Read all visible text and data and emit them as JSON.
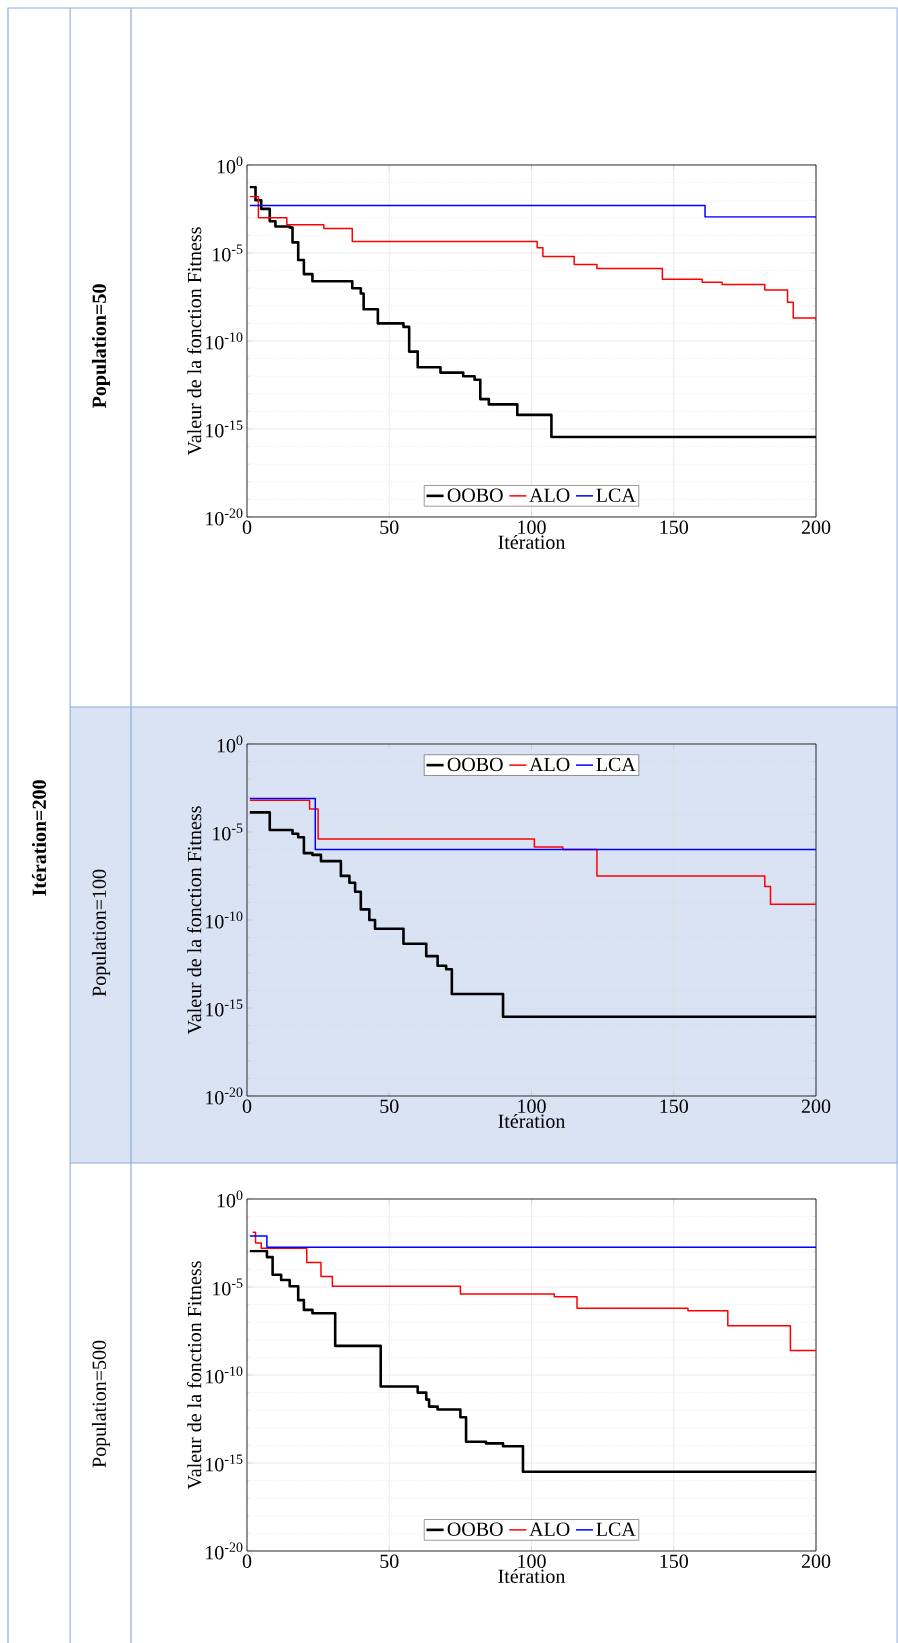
{
  "chart_data": [
    {
      "type": "step",
      "title": "Population=50",
      "xlabel": "Itération",
      "ylabel": "Valeur de la fonction Fitness",
      "annotations": [
        "Itération=200"
      ],
      "xlim": [
        0,
        200
      ],
      "ylim": [
        1e-20,
        1
      ],
      "xticks": [
        0,
        50,
        100,
        150,
        200
      ],
      "yticks": [
        {
          "value": 1e-20,
          "label": "10$^{-20}$"
        },
        {
          "value": 1e-15,
          "label": "10$^{-15}$"
        },
        {
          "value": 1e-10,
          "label": "10$^{-10}$"
        },
        {
          "value": 1e-05,
          "label": "10$^{-5}$"
        },
        {
          "value": 1,
          "label": "10$^{0}$"
        }
      ],
      "log": "y",
      "grid": true,
      "legend": "bottom",
      "series": [
        {
          "name": "OOBO",
          "color": "#000000",
          "x": [
            1,
            3,
            5,
            8,
            10,
            15,
            16,
            18,
            20,
            23,
            37,
            40,
            41,
            46,
            55,
            57,
            60,
            68,
            76,
            80,
            82,
            85,
            95,
            107,
            200
          ],
          "values": [
            0.056,
            0.01,
            0.0032,
            0.00063,
            0.00032,
            0.00028,
            4e-05,
            4e-06,
            6.3e-07,
            2.5e-07,
            1e-07,
            5e-08,
            6.3e-09,
            1e-09,
            6.3e-10,
            2.5e-11,
            3.2e-12,
            1.6e-12,
            1e-12,
            6.3e-13,
            5e-14,
            2.5e-14,
            6.3e-15,
            3.5e-16,
            3.5e-16
          ]
        },
        {
          "name": "ALO",
          "color": "#ff0000",
          "x": [
            1,
            4,
            14,
            27,
            37,
            102,
            104,
            115,
            123,
            146,
            160,
            167,
            182,
            190,
            192,
            200
          ],
          "values": [
            0.016,
            0.001,
            0.0004,
            0.00025,
            4.5e-05,
            2e-05,
            6.3e-06,
            2.2e-06,
            1.3e-06,
            3.2e-07,
            2.2e-07,
            1.6e-07,
            7.9e-08,
            1.6e-08,
            2e-09,
            1.4e-09
          ]
        },
        {
          "name": "LCA",
          "color": "#0000ff",
          "x": [
            1,
            161,
            200
          ],
          "values": [
            0.005,
            0.0011,
            0.0011
          ]
        }
      ]
    },
    {
      "type": "step",
      "title": "Population=100",
      "xlabel": "Itération",
      "ylabel": "Valeur de la fonction Fitness",
      "xlim": [
        0,
        200
      ],
      "ylim": [
        1e-20,
        1
      ],
      "xticks": [
        0,
        50,
        100,
        150,
        200
      ],
      "yticks": [
        {
          "value": 1e-20,
          "label": "10$^{-20}$"
        },
        {
          "value": 1e-15,
          "label": "10$^{-15}$"
        },
        {
          "value": 1e-10,
          "label": "10$^{-10}$"
        },
        {
          "value": 1e-05,
          "label": "10$^{-5}$"
        },
        {
          "value": 1,
          "label": "10$^{0}$"
        }
      ],
      "log": "y",
      "grid": true,
      "legend": "top",
      "series": [
        {
          "name": "OOBO",
          "color": "#000000",
          "x": [
            1,
            8,
            16,
            18,
            20,
            23,
            26,
            33,
            36,
            38,
            40,
            43,
            45,
            55,
            63,
            67,
            70,
            72,
            90,
            200
          ],
          "values": [
            0.00013,
            1.3e-05,
            7.9e-06,
            5e-06,
            6.3e-07,
            5e-07,
            2.2e-07,
            3.2e-08,
            1.3e-08,
            4e-09,
            4e-10,
            1e-10,
            3.2e-11,
            4.5e-12,
            8.9e-13,
            2.5e-13,
            1.6e-13,
            6.3e-15,
            3.2e-16,
            3.2e-16
          ]
        },
        {
          "name": "ALO",
          "color": "#ff0000",
          "x": [
            1,
            22,
            25,
            101,
            111,
            123,
            182,
            184,
            200
          ],
          "values": [
            0.00063,
            0.0002,
            4e-06,
            1.4e-06,
            1e-06,
            3.2e-08,
            7.9e-09,
            7.9e-10,
            7.9e-10
          ]
        },
        {
          "name": "LCA",
          "color": "#0000ff",
          "x": [
            1,
            24,
            200
          ],
          "values": [
            0.00079,
            1e-06,
            1e-06
          ]
        }
      ]
    },
    {
      "type": "step",
      "title": "Population=500",
      "xlabel": "Itération",
      "ylabel": "Valeur de la fonction Fitness",
      "xlim": [
        0,
        200
      ],
      "ylim": [
        1e-20,
        1
      ],
      "xticks": [
        0,
        50,
        100,
        150,
        200
      ],
      "yticks": [
        {
          "value": 1e-20,
          "label": "10$^{-20}$"
        },
        {
          "value": 1e-15,
          "label": "10$^{-15}$"
        },
        {
          "value": 1e-10,
          "label": "10$^{-10}$"
        },
        {
          "value": 1e-05,
          "label": "10$^{-5}$"
        },
        {
          "value": 1,
          "label": "10$^{0}$"
        }
      ],
      "log": "y",
      "grid": true,
      "legend": "bottom",
      "series": [
        {
          "name": "OOBO",
          "color": "#000000",
          "x": [
            1,
            7,
            9,
            12,
            15,
            18,
            20,
            23,
            31,
            47,
            60,
            63,
            64,
            67,
            75,
            77,
            84,
            90,
            97,
            200
          ],
          "values": [
            0.0011,
            0.0005,
            5e-05,
            2.5e-05,
            1.1e-05,
            1.8e-06,
            5e-07,
            3.2e-07,
            4.5e-09,
            2.2e-11,
            1e-11,
            4e-12,
            1.6e-12,
            1.1e-12,
            4e-13,
            1.6e-14,
            1.3e-14,
            8.9e-15,
            3.2e-16,
            3.2e-16
          ]
        },
        {
          "name": "ALO",
          "color": "#ff0000",
          "x": [
            2,
            3,
            5,
            21,
            26,
            30,
            75,
            108,
            116,
            155,
            169,
            191,
            200
          ],
          "values": [
            0.013,
            0.0032,
            0.0016,
            0.00025,
            4e-05,
            1.1e-05,
            4e-06,
            2.8e-06,
            6.3e-07,
            4.5e-07,
            6.3e-08,
            2.5e-09,
            2.5e-09
          ]
        },
        {
          "name": "LCA",
          "color": "#0000ff",
          "x": [
            1,
            7,
            200
          ],
          "values": [
            0.0079,
            0.0018,
            0.0018
          ]
        }
      ]
    }
  ]
}
